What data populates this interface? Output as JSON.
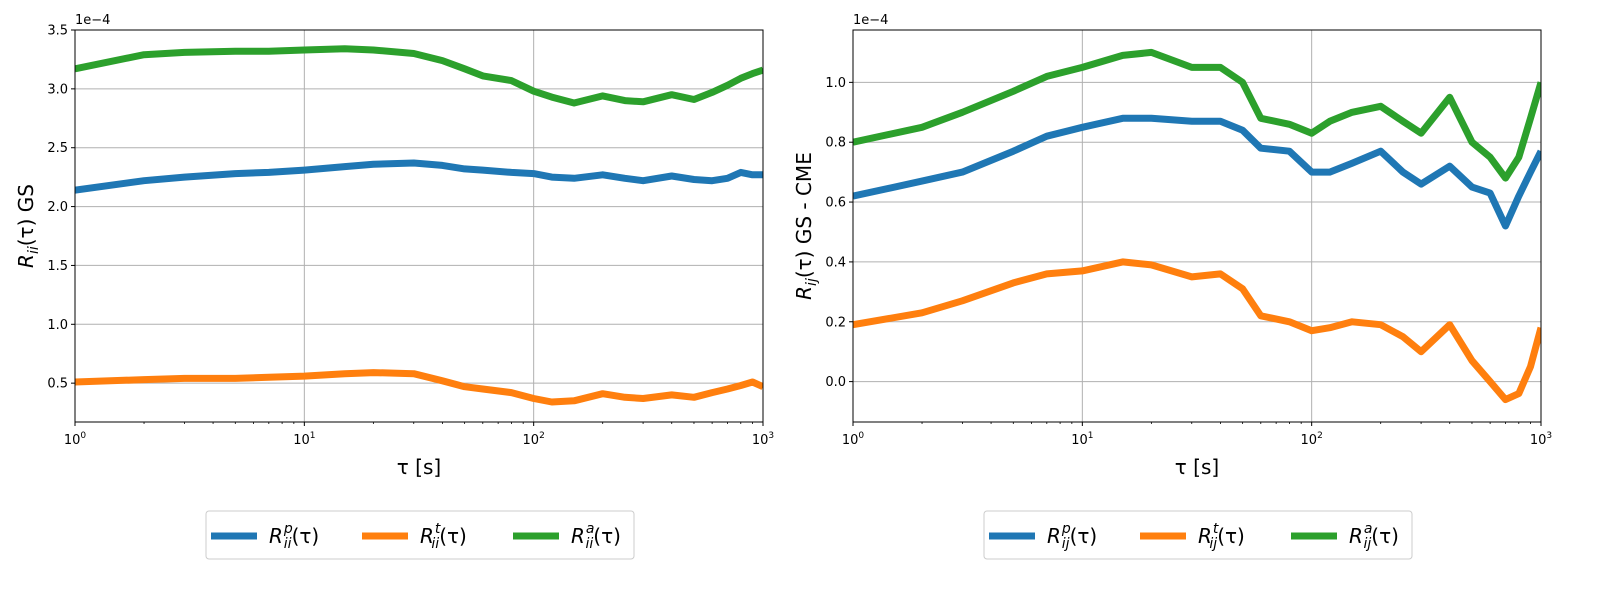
{
  "chart_data": [
    {
      "type": "line",
      "title": "",
      "xlabel": "τ [s]",
      "ylabel": "R_ii(τ) GS",
      "y_offset_label": "1e−4",
      "xscale": "log",
      "xlim": [
        1,
        1000
      ],
      "ylim": [
        0.17,
        3.5
      ],
      "x_ticks": [
        {
          "v": 1,
          "base": "10",
          "exp": "0"
        },
        {
          "v": 10,
          "base": "10",
          "exp": "1"
        },
        {
          "v": 100,
          "base": "10",
          "exp": "2"
        },
        {
          "v": 1000,
          "base": "10",
          "exp": "3"
        }
      ],
      "y_ticks": [
        {
          "v": 0.5,
          "label": "0.5"
        },
        {
          "v": 1.0,
          "label": "1.0"
        },
        {
          "v": 1.5,
          "label": "1.5"
        },
        {
          "v": 2.0,
          "label": "2.0"
        },
        {
          "v": 2.5,
          "label": "2.5"
        },
        {
          "v": 3.0,
          "label": "3.0"
        },
        {
          "v": 3.5,
          "label": "3.5"
        }
      ],
      "grid": true,
      "legend_position": "below",
      "x": [
        1,
        2,
        3,
        5,
        7,
        10,
        15,
        20,
        30,
        40,
        50,
        60,
        80,
        100,
        120,
        150,
        200,
        250,
        300,
        400,
        500,
        600,
        700,
        800,
        900,
        1000
      ],
      "series": [
        {
          "name": "R_ii^p(τ)",
          "color": "#1f77b4",
          "legend": {
            "base": "R",
            "sub": "ii",
            "sup": "p",
            "tail": "(τ)"
          },
          "values": [
            2.14,
            2.22,
            2.25,
            2.28,
            2.29,
            2.31,
            2.34,
            2.36,
            2.37,
            2.35,
            2.32,
            2.31,
            2.29,
            2.28,
            2.25,
            2.24,
            2.27,
            2.24,
            2.22,
            2.26,
            2.23,
            2.22,
            2.24,
            2.29,
            2.27,
            2.27
          ]
        },
        {
          "name": "R_ii^t(τ)",
          "color": "#ff7f0e",
          "legend": {
            "base": "R",
            "sub": "ii",
            "sup": "t",
            "tail": "(τ)"
          },
          "values": [
            0.51,
            0.53,
            0.54,
            0.54,
            0.55,
            0.56,
            0.58,
            0.59,
            0.58,
            0.52,
            0.47,
            0.45,
            0.42,
            0.37,
            0.34,
            0.35,
            0.41,
            0.38,
            0.37,
            0.4,
            0.38,
            0.42,
            0.45,
            0.48,
            0.51,
            0.47
          ]
        },
        {
          "name": "R_ii^a(τ)",
          "color": "#2ca02c",
          "legend": {
            "base": "R",
            "sub": "ii",
            "sup": "a",
            "tail": "(τ)"
          },
          "values": [
            3.17,
            3.29,
            3.31,
            3.32,
            3.32,
            3.33,
            3.34,
            3.33,
            3.3,
            3.24,
            3.17,
            3.11,
            3.07,
            2.98,
            2.93,
            2.88,
            2.94,
            2.9,
            2.89,
            2.95,
            2.91,
            2.97,
            3.03,
            3.09,
            3.13,
            3.16
          ]
        }
      ]
    },
    {
      "type": "line",
      "title": "",
      "xlabel": "τ [s]",
      "ylabel": "R_ij(τ) GS - CME",
      "y_offset_label": "1e−4",
      "xscale": "log",
      "xlim": [
        1,
        1000
      ],
      "ylim": [
        -0.135,
        1.175
      ],
      "x_ticks": [
        {
          "v": 1,
          "base": "10",
          "exp": "0"
        },
        {
          "v": 10,
          "base": "10",
          "exp": "1"
        },
        {
          "v": 100,
          "base": "10",
          "exp": "2"
        },
        {
          "v": 1000,
          "base": "10",
          "exp": "3"
        }
      ],
      "y_ticks": [
        {
          "v": 0.0,
          "label": "0.0"
        },
        {
          "v": 0.2,
          "label": "0.2"
        },
        {
          "v": 0.4,
          "label": "0.4"
        },
        {
          "v": 0.6,
          "label": "0.6"
        },
        {
          "v": 0.8,
          "label": "0.8"
        },
        {
          "v": 1.0,
          "label": "1.0"
        }
      ],
      "grid": true,
      "legend_position": "below",
      "x": [
        1,
        2,
        3,
        5,
        7,
        10,
        15,
        20,
        30,
        40,
        50,
        60,
        80,
        100,
        120,
        150,
        200,
        250,
        300,
        400,
        500,
        600,
        700,
        800,
        900,
        1000
      ],
      "series": [
        {
          "name": "R_ij^p(τ)",
          "color": "#1f77b4",
          "legend": {
            "base": "R",
            "sub": "ij",
            "sup": "p",
            "tail": "(τ)"
          },
          "values": [
            0.62,
            0.67,
            0.7,
            0.77,
            0.82,
            0.85,
            0.88,
            0.88,
            0.87,
            0.87,
            0.84,
            0.78,
            0.77,
            0.7,
            0.7,
            0.73,
            0.77,
            0.7,
            0.66,
            0.72,
            0.65,
            0.63,
            0.52,
            0.62,
            0.7,
            0.77
          ]
        },
        {
          "name": "R_ij^t(τ)",
          "color": "#ff7f0e",
          "legend": {
            "base": "R",
            "sub": "ij",
            "sup": "t",
            "tail": "(τ)"
          },
          "values": [
            0.19,
            0.23,
            0.27,
            0.33,
            0.36,
            0.37,
            0.4,
            0.39,
            0.35,
            0.36,
            0.31,
            0.22,
            0.2,
            0.17,
            0.18,
            0.2,
            0.19,
            0.15,
            0.1,
            0.19,
            0.07,
            0.0,
            -0.06,
            -0.04,
            0.05,
            0.18
          ]
        },
        {
          "name": "R_ij^a(τ)",
          "color": "#2ca02c",
          "legend": {
            "base": "R",
            "sub": "ij",
            "sup": "a",
            "tail": "(τ)"
          },
          "values": [
            0.8,
            0.85,
            0.9,
            0.97,
            1.02,
            1.05,
            1.09,
            1.1,
            1.05,
            1.05,
            1.0,
            0.88,
            0.86,
            0.83,
            0.87,
            0.9,
            0.92,
            0.87,
            0.83,
            0.95,
            0.8,
            0.75,
            0.68,
            0.75,
            0.88,
            1.0
          ]
        }
      ]
    }
  ]
}
